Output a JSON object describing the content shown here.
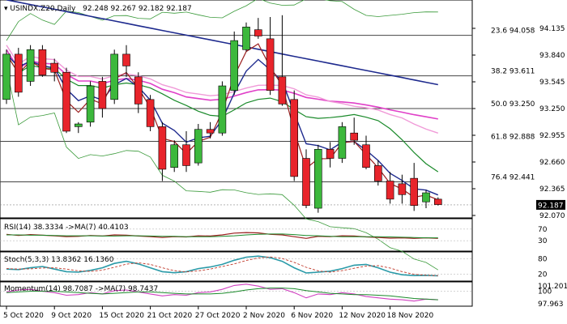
{
  "header": {
    "symbol": "USINDX.Z20,Daily",
    "ohlc": "92.248 92.267 92.182 92.187"
  },
  "colors": {
    "bull": "#3cb83c",
    "bear": "#e8242b",
    "ma_blue": "#1e2a8e",
    "ma_brown": "#9b1f1f",
    "ma_green": "#1a8a2a",
    "ma_magenta": "#e040c8",
    "ma_pink": "#f09ad8",
    "band": "#3a9a3a",
    "current_price_bg": "#000000"
  },
  "price_axis": {
    "ticks": [
      "94.135",
      "93.840",
      "93.545",
      "93.250",
      "92.955",
      "92.660",
      "92.365",
      "92.070"
    ],
    "current": "92.187"
  },
  "fib_levels": [
    {
      "label": "23.6  94.058",
      "value": 94.058
    },
    {
      "label": "38.2  93.611",
      "value": 93.611
    },
    {
      "label": "50.0  93.250",
      "value": 93.25
    },
    {
      "label": "61.8  92.888",
      "value": 92.888
    },
    {
      "label": "76.4  92.441",
      "value": 92.441
    }
  ],
  "x_axis": {
    "labels": [
      "5 Oct 2020",
      "9 Oct 2020",
      "15 Oct 2020",
      "21 Oct 2020",
      "27 Oct 2020",
      "2 Nov 2020",
      "6 Nov 2020",
      "12 Nov 2020",
      "18 Nov 2020"
    ]
  },
  "candles": [
    {
      "o": 93.35,
      "h": 93.9,
      "l": 93.3,
      "c": 93.85
    },
    {
      "o": 93.85,
      "h": 93.92,
      "l": 93.38,
      "c": 93.43
    },
    {
      "o": 93.55,
      "h": 93.95,
      "l": 93.5,
      "c": 93.9
    },
    {
      "o": 93.9,
      "h": 93.95,
      "l": 93.6,
      "c": 93.62
    },
    {
      "o": 93.75,
      "h": 93.8,
      "l": 93.55,
      "c": 93.65
    },
    {
      "o": 93.65,
      "h": 93.7,
      "l": 92.98,
      "c": 93.0
    },
    {
      "o": 93.05,
      "h": 93.1,
      "l": 92.98,
      "c": 93.08
    },
    {
      "o": 93.1,
      "h": 93.55,
      "l": 93.05,
      "c": 93.5
    },
    {
      "o": 93.55,
      "h": 93.6,
      "l": 93.15,
      "c": 93.25
    },
    {
      "o": 93.35,
      "h": 93.9,
      "l": 93.3,
      "c": 93.85
    },
    {
      "o": 93.85,
      "h": 93.95,
      "l": 93.6,
      "c": 93.72
    },
    {
      "o": 93.6,
      "h": 93.65,
      "l": 93.2,
      "c": 93.3
    },
    {
      "o": 93.35,
      "h": 93.4,
      "l": 93.0,
      "c": 93.05
    },
    {
      "o": 93.05,
      "h": 93.1,
      "l": 92.45,
      "c": 92.58
    },
    {
      "o": 92.6,
      "h": 92.9,
      "l": 92.55,
      "c": 92.85
    },
    {
      "o": 92.85,
      "h": 93.0,
      "l": 92.55,
      "c": 92.62
    },
    {
      "o": 92.65,
      "h": 93.08,
      "l": 92.62,
      "c": 93.02
    },
    {
      "o": 93.02,
      "h": 93.1,
      "l": 92.92,
      "c": 92.98
    },
    {
      "o": 92.98,
      "h": 93.55,
      "l": 92.95,
      "c": 93.5
    },
    {
      "o": 93.45,
      "h": 94.1,
      "l": 93.4,
      "c": 94.0
    },
    {
      "o": 93.9,
      "h": 94.2,
      "l": 93.88,
      "c": 94.15
    },
    {
      "o": 94.12,
      "h": 94.25,
      "l": 94.02,
      "c": 94.05
    },
    {
      "o": 94.02,
      "h": 94.26,
      "l": 93.4,
      "c": 93.45
    },
    {
      "o": 93.6,
      "h": 94.28,
      "l": 93.28,
      "c": 93.3
    },
    {
      "o": 93.35,
      "h": 93.45,
      "l": 92.45,
      "c": 92.5
    },
    {
      "o": 92.7,
      "h": 92.8,
      "l": 92.15,
      "c": 92.18
    },
    {
      "o": 92.15,
      "h": 92.85,
      "l": 92.1,
      "c": 92.8
    },
    {
      "o": 92.8,
      "h": 92.88,
      "l": 92.6,
      "c": 92.7
    },
    {
      "o": 92.7,
      "h": 93.1,
      "l": 92.65,
      "c": 93.05
    },
    {
      "o": 92.98,
      "h": 93.15,
      "l": 92.85,
      "c": 92.9
    },
    {
      "o": 92.85,
      "h": 92.95,
      "l": 92.58,
      "c": 92.6
    },
    {
      "o": 92.62,
      "h": 92.68,
      "l": 92.4,
      "c": 92.45
    },
    {
      "o": 92.45,
      "h": 92.55,
      "l": 92.2,
      "c": 92.25
    },
    {
      "o": 92.42,
      "h": 92.52,
      "l": 92.2,
      "c": 92.3
    },
    {
      "o": 92.48,
      "h": 92.65,
      "l": 92.12,
      "c": 92.18
    },
    {
      "o": 92.22,
      "h": 92.35,
      "l": 92.15,
      "c": 92.32
    },
    {
      "o": 92.25,
      "h": 92.27,
      "l": 92.18,
      "c": 92.19
    }
  ],
  "rsi": {
    "label": "RSI(14) 38.3334  ->MA(7) 40.4103",
    "scale": [
      "70",
      "30"
    ],
    "values": [
      52,
      48,
      51,
      49,
      47,
      44,
      45,
      48,
      46,
      50,
      49,
      46,
      44,
      41,
      44,
      43,
      47,
      46,
      50,
      56,
      58,
      57,
      52,
      50,
      44,
      38,
      45,
      44,
      47,
      46,
      43,
      41,
      39,
      40,
      38,
      40,
      38
    ],
    "ma": [
      50,
      50,
      49,
      49,
      48,
      47,
      47,
      47,
      46,
      46,
      47,
      47,
      46,
      45,
      45,
      44,
      44,
      44,
      45,
      47,
      50,
      52,
      53,
      53,
      51,
      48,
      47,
      45,
      44,
      44,
      44,
      44,
      43,
      42,
      41,
      40,
      40
    ]
  },
  "stoch": {
    "label": "Stoch(5,3,3) 13.8362 16.1360",
    "scale": [
      "80",
      "20"
    ],
    "k": [
      40,
      38,
      45,
      50,
      40,
      30,
      28,
      35,
      45,
      62,
      70,
      60,
      45,
      30,
      26,
      30,
      42,
      48,
      58,
      74,
      86,
      90,
      84,
      70,
      45,
      25,
      28,
      32,
      42,
      55,
      58,
      45,
      28,
      18,
      15,
      16,
      14
    ],
    "d": [
      42,
      40,
      41,
      44,
      45,
      40,
      33,
      31,
      36,
      47,
      59,
      64,
      58,
      45,
      34,
      29,
      33,
      40,
      50,
      60,
      73,
      83,
      87,
      81,
      66,
      47,
      33,
      28,
      34,
      43,
      52,
      53,
      44,
      30,
      20,
      16,
      15
    ]
  },
  "momentum": {
    "label": "Momentum(14) 98.7087  ->MA(7) 98.7437",
    "scale": [
      "101.2015",
      "100",
      "97.963"
    ],
    "values": [
      99.9,
      100.2,
      100.3,
      100.0,
      99.8,
      99.4,
      99.5,
      99.8,
      99.6,
      100.1,
      100.2,
      99.9,
      99.6,
      99.3,
      99.5,
      99.4,
      99.8,
      99.9,
      100.3,
      100.9,
      101.1,
      100.8,
      100.3,
      100.4,
      99.8,
      99.0,
      99.6,
      99.5,
      99.8,
      99.6,
      99.2,
      99.0,
      98.8,
      98.7,
      98.5,
      98.8,
      98.7
    ],
    "ma": [
      99.8,
      99.9,
      100.0,
      100.0,
      100.0,
      99.9,
      99.8,
      99.7,
      99.6,
      99.7,
      99.8,
      99.9,
      99.9,
      99.8,
      99.7,
      99.6,
      99.6,
      99.6,
      99.7,
      99.9,
      100.2,
      100.4,
      100.5,
      100.5,
      100.4,
      100.1,
      99.9,
      99.7,
      99.6,
      99.5,
      99.5,
      99.4,
      99.3,
      99.1,
      98.9,
      98.8,
      98.7
    ]
  }
}
